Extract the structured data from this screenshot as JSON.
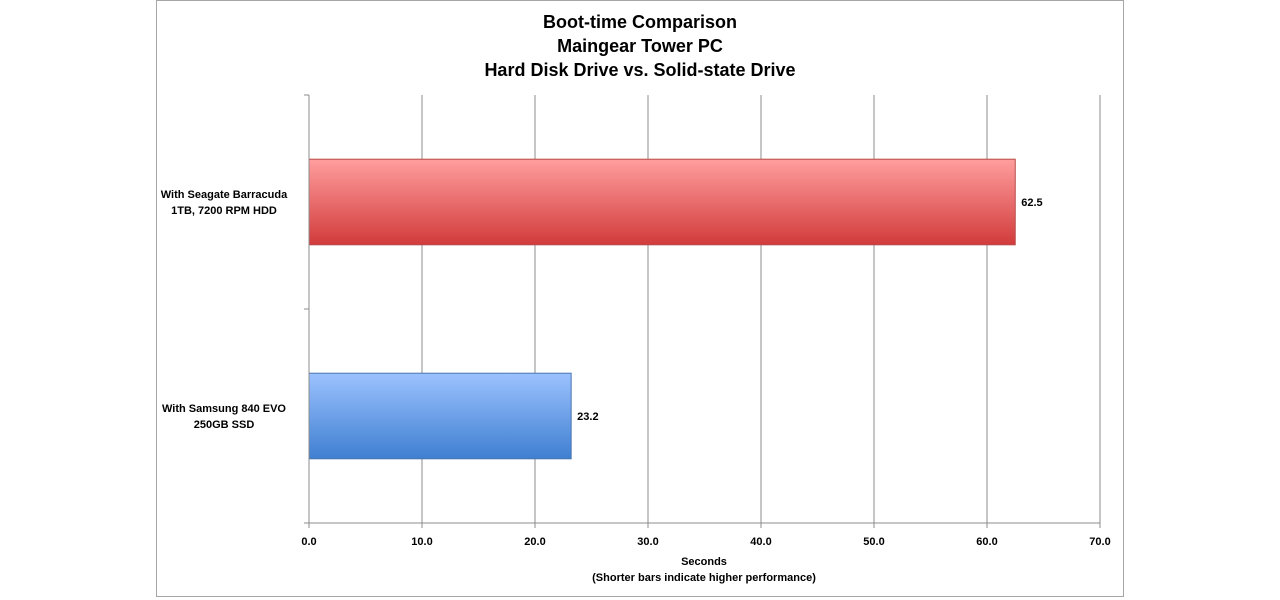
{
  "chart_data": {
    "type": "bar",
    "orientation": "horizontal",
    "title": [
      "Boot-time Comparison",
      "Maingear Tower PC",
      "Hard Disk Drive vs. Solid-state Drive"
    ],
    "categories": [
      [
        "With Seagate Barracuda",
        "1TB, 7200 RPM HDD"
      ],
      [
        "With Samsung 840 EVO",
        "250GB SSD"
      ]
    ],
    "values": [
      62.5,
      23.2
    ],
    "value_labels": [
      "62.5",
      "23.2"
    ],
    "bar_colors": [
      {
        "top": "#ff9e9e",
        "bottom": "#d23b3b",
        "stroke": "#b94a48"
      },
      {
        "top": "#9cc2ff",
        "bottom": "#3f7fd1",
        "stroke": "#4a76b0"
      }
    ],
    "xlabel": [
      "Seconds",
      "(Shorter bars indicate higher performance)"
    ],
    "ylabel": "",
    "xlim": [
      0,
      70
    ],
    "xticks": [
      "0.0",
      "10.0",
      "20.0",
      "30.0",
      "40.0",
      "50.0",
      "60.0",
      "70.0"
    ],
    "grid": true,
    "legend": "none"
  }
}
